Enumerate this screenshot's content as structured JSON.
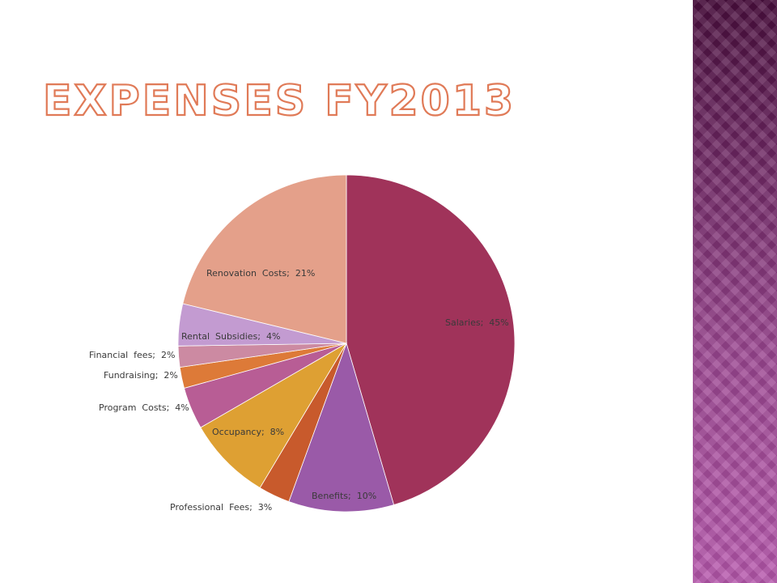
{
  "slide": {
    "title": "Expenses FY2013"
  },
  "chart_data": {
    "type": "pie",
    "title": "Expenses FY2013",
    "start_angle_deg": 0,
    "direction": "clockwise",
    "slices": [
      {
        "label": "Salaries",
        "value": 45,
        "display": "Salaries;  45%",
        "color": "#a0335a"
      },
      {
        "label": "Benefits",
        "value": 10,
        "display": "Benefits;  10%",
        "color": "#9a5aa8"
      },
      {
        "label": "Professional Fees",
        "value": 3,
        "display": "Professional  Fees;  3%",
        "color": "#c85a2c"
      },
      {
        "label": "Occupancy",
        "value": 8,
        "display": "Occupancy;  8%",
        "color": "#dea033"
      },
      {
        "label": "Program Costs",
        "value": 4,
        "display": "Program  Costs;  4%",
        "color": "#b85d95"
      },
      {
        "label": "Fundraising",
        "value": 2,
        "display": "Fundraising;  2%",
        "color": "#dd7a38"
      },
      {
        "label": "Financial fees",
        "value": 2,
        "display": "Financial  fees;  2%",
        "color": "#cc8aa2"
      },
      {
        "label": "Rental Subsidies",
        "value": 4,
        "display": "Rental  Subsidies;  4%",
        "color": "#c39bd1"
      },
      {
        "label": "Renovation Costs",
        "value": 21,
        "display": "Renovation  Costs;  21%",
        "color": "#e4a08a"
      }
    ]
  }
}
